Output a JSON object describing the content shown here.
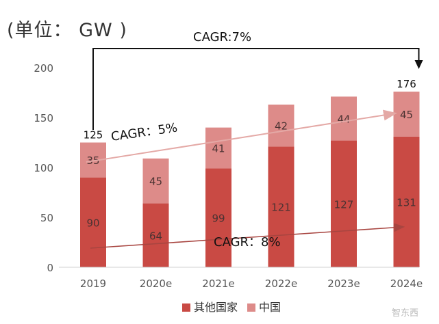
{
  "unit_label": "(单位： GW )",
  "chart_data": {
    "type": "bar",
    "stacked": true,
    "categories": [
      "2019",
      "2020e",
      "2021e",
      "2022e",
      "2023e",
      "2024e"
    ],
    "series": [
      {
        "name": "其他国家",
        "values": [
          90,
          64,
          99,
          121,
          127,
          131
        ],
        "color": "#c94a44"
      },
      {
        "name": "中国",
        "values": [
          35,
          45,
          41,
          42,
          44,
          45
        ],
        "color": "#dd8b89"
      }
    ],
    "totals": {
      "2019": "125",
      "2024e": "176"
    },
    "ylim": [
      0,
      200
    ],
    "yticks": [
      0,
      50,
      100,
      150,
      200
    ],
    "grid": false,
    "legend": "bottom",
    "annotations": [
      {
        "text": "CAGR:7%",
        "kind": "bracket",
        "from": "2019",
        "to": "2024e"
      },
      {
        "text": "CAGR：5%",
        "kind": "trend",
        "series": "中国"
      },
      {
        "text": "CAGR：8%",
        "kind": "trend",
        "series": "其他国家"
      }
    ]
  },
  "watermark": "智东西"
}
